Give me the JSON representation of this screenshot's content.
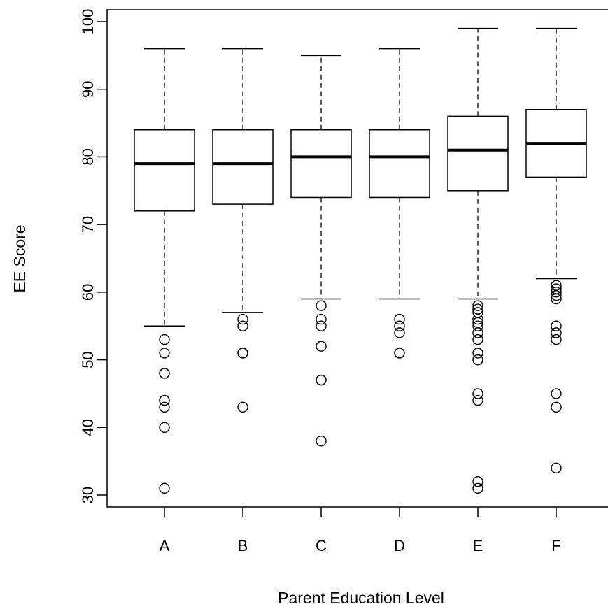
{
  "chart_data": {
    "type": "boxplot",
    "title": "",
    "xlabel": "Parent Education Level",
    "ylabel": "EE Score",
    "ylim": [
      28,
      102
    ],
    "yticks": [
      30,
      40,
      50,
      60,
      70,
      80,
      90,
      100
    ],
    "grid": false,
    "categories": [
      "A",
      "B",
      "C",
      "D",
      "E",
      "F"
    ],
    "boxes": [
      {
        "category": "A",
        "whisker_low": 55,
        "q1": 72,
        "median": 79,
        "q3": 84,
        "whisker_high": 96,
        "outliers": [
          53,
          51,
          48,
          48,
          44,
          44,
          43,
          40,
          31
        ]
      },
      {
        "category": "B",
        "whisker_low": 57,
        "q1": 73,
        "median": 79,
        "q3": 84,
        "whisker_high": 96,
        "outliers": [
          56,
          55,
          51,
          51,
          43
        ]
      },
      {
        "category": "C",
        "whisker_low": 59,
        "q1": 74,
        "median": 80,
        "q3": 84,
        "whisker_high": 95,
        "outliers": [
          58,
          56,
          55,
          52,
          47,
          47,
          38
        ]
      },
      {
        "category": "D",
        "whisker_low": 59,
        "q1": 74,
        "median": 80,
        "q3": 84,
        "whisker_high": 96,
        "outliers": [
          56,
          55,
          54,
          51,
          51
        ]
      },
      {
        "category": "E",
        "whisker_low": 59,
        "q1": 75,
        "median": 81,
        "q3": 86,
        "whisker_high": 99,
        "outliers": [
          58,
          57.5,
          57,
          56,
          55.5,
          55,
          54,
          53,
          51,
          50,
          50,
          45,
          44,
          32,
          31
        ]
      },
      {
        "category": "F",
        "whisker_low": 62,
        "q1": 77,
        "median": 82,
        "q3": 87,
        "whisker_high": 99,
        "outliers": [
          61,
          60.5,
          60,
          59.5,
          59,
          55,
          54,
          53,
          45,
          43,
          34
        ]
      }
    ]
  }
}
